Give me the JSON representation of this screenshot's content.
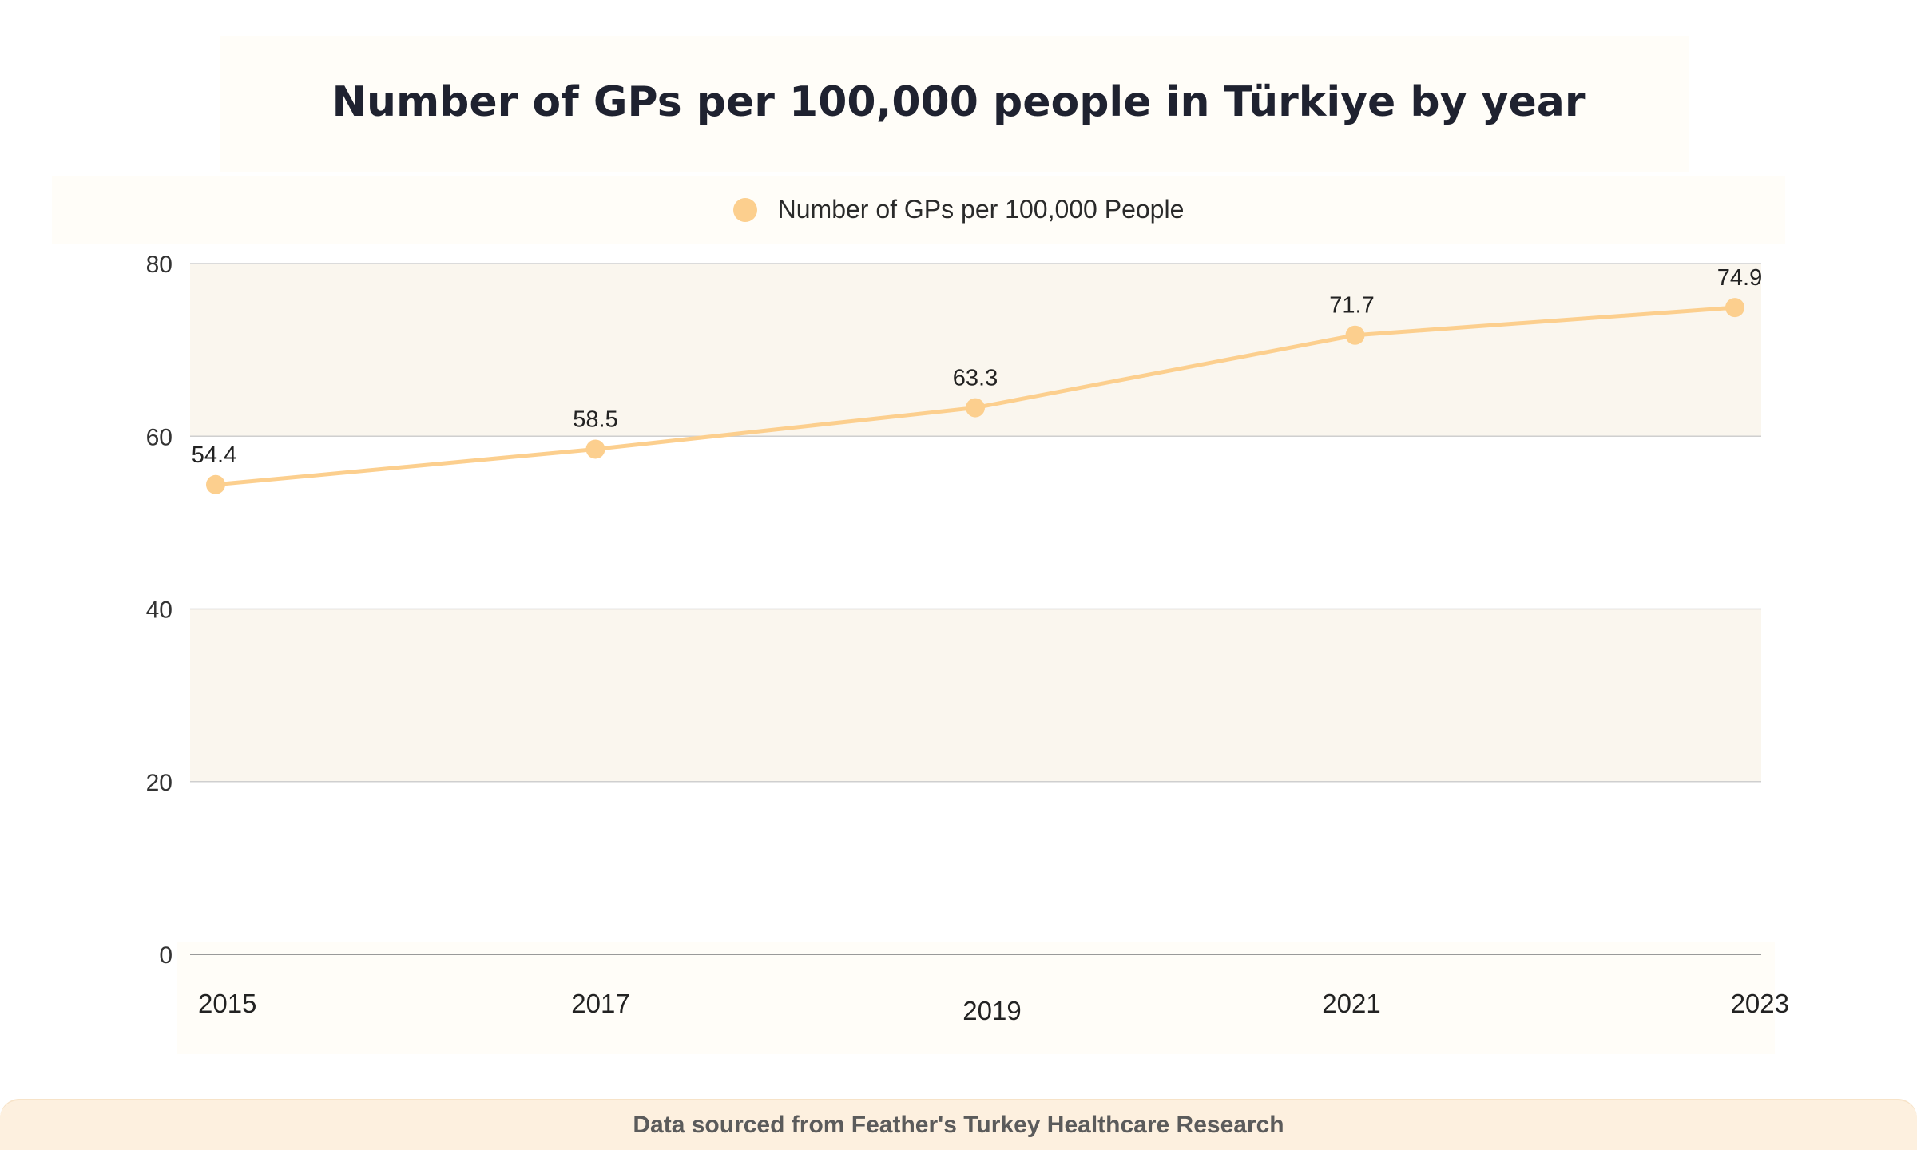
{
  "footer": {
    "source_text": "Data sourced from Feather's Turkey Healthcare Research"
  },
  "colors": {
    "series": "#fccf8e",
    "band": "#faf6ee",
    "grid": "#cfcfcf",
    "text": "#1f2230",
    "footer_bg": "#fdf0df"
  },
  "chart_data": {
    "type": "line",
    "title": "Number of GPs per 100,000 people in Türkiye by year",
    "xlabel": "",
    "ylabel": "",
    "x": [
      "2015",
      "2017",
      "2019",
      "2021",
      "2023"
    ],
    "series": [
      {
        "name": "Number of GPs per 100,000 People",
        "values": [
          54.4,
          58.5,
          63.3,
          71.7,
          74.9
        ],
        "labels": [
          "54.4",
          "58.5",
          "63.3",
          "71.7",
          "74.9"
        ]
      }
    ],
    "yticks": [
      "0",
      "20",
      "40",
      "60",
      "80"
    ],
    "ylim": [
      0,
      80
    ],
    "grid": true,
    "legend_position": "top-center"
  }
}
